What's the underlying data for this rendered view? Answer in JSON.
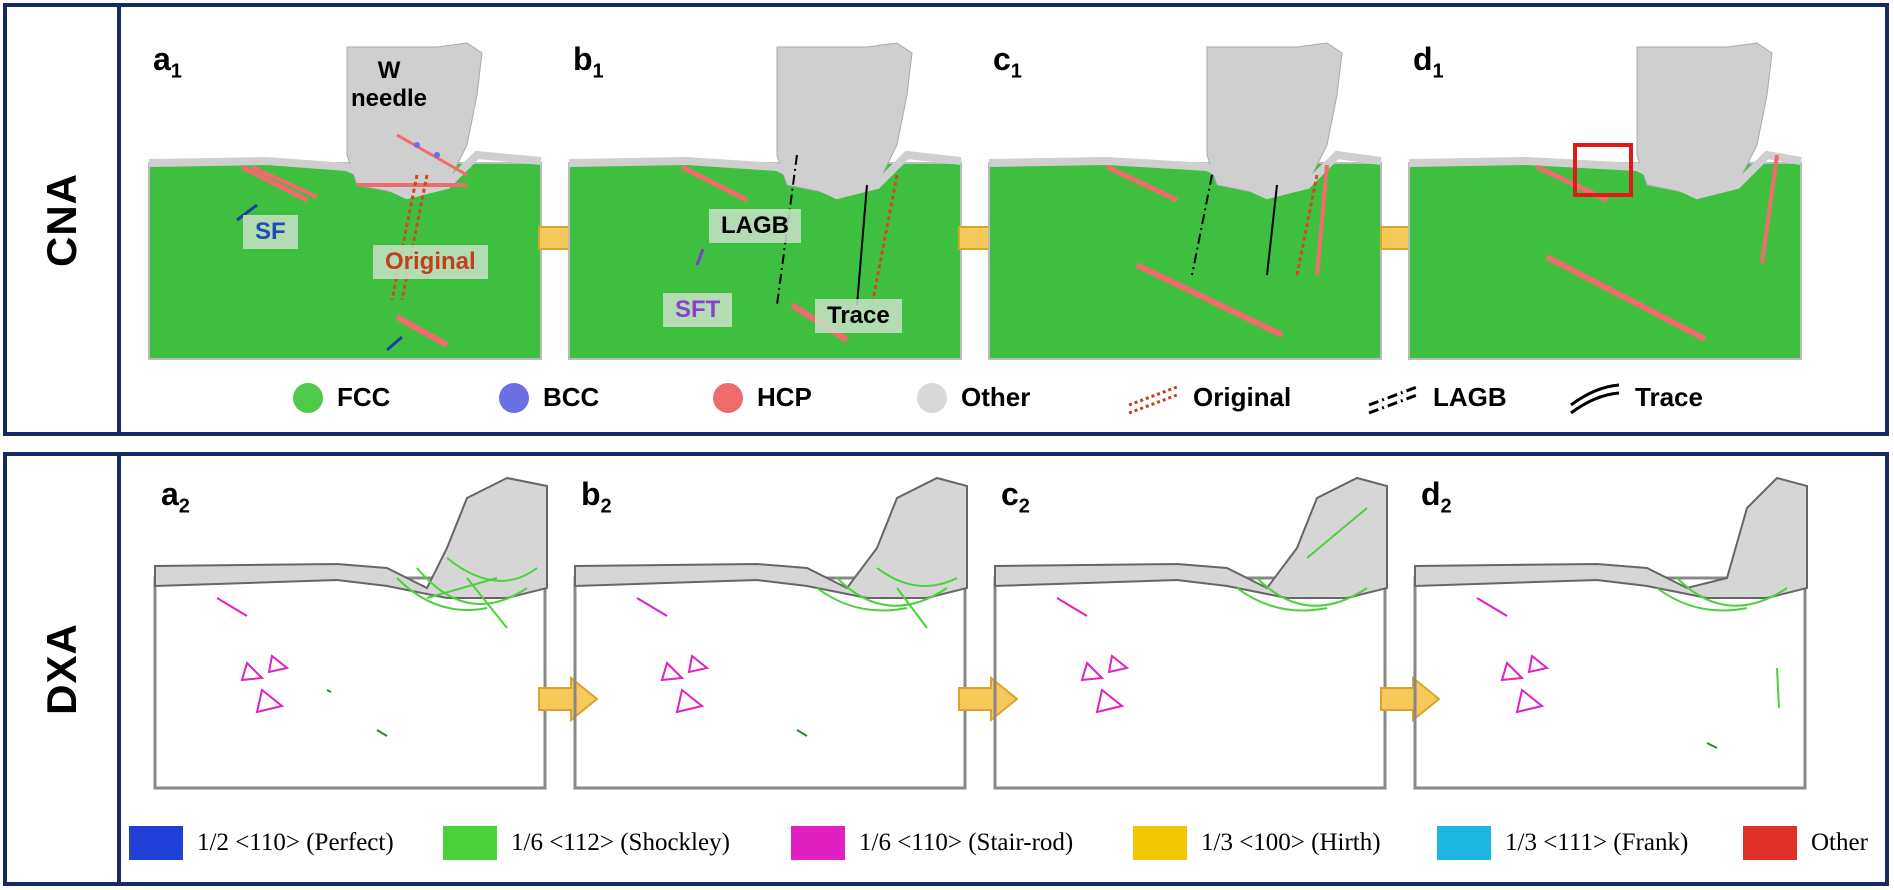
{
  "cna": {
    "side_label": "CNA",
    "panels": [
      {
        "letter": "a",
        "sub": "1"
      },
      {
        "letter": "b",
        "sub": "1"
      },
      {
        "letter": "c",
        "sub": "1"
      },
      {
        "letter": "d",
        "sub": "1"
      }
    ],
    "annotations": {
      "w_line1": "W",
      "w_line2": "needle",
      "sf": "SF",
      "original": "Original",
      "lagb": "LAGB",
      "sft": "SFT",
      "trace": "Trace"
    },
    "legend": [
      {
        "label": "FCC",
        "color": "#4fc94a"
      },
      {
        "label": "BCC",
        "color": "#6b6fe6"
      },
      {
        "label": "HCP",
        "color": "#f06c6c"
      },
      {
        "label": "Other",
        "color": "#d8d8d8"
      },
      {
        "label": "Original",
        "color": "#c0401e"
      },
      {
        "label": "LAGB",
        "color": "#000000"
      },
      {
        "label": "Trace",
        "color": "#000000"
      }
    ]
  },
  "dxa": {
    "side_label": "DXA",
    "panels": [
      {
        "letter": "a",
        "sub": "2"
      },
      {
        "letter": "b",
        "sub": "2"
      },
      {
        "letter": "c",
        "sub": "2"
      },
      {
        "letter": "d",
        "sub": "2"
      }
    ],
    "legend": [
      {
        "label": "1/2 <110> (Perfect)",
        "color": "#1f3fd6"
      },
      {
        "label": "1/6 <112> (Shockley)",
        "color": "#4bd23a"
      },
      {
        "label": "1/6 <110> (Stair-rod)",
        "color": "#e020c0"
      },
      {
        "label": "1/3 <100> (Hirth)",
        "color": "#f2c600"
      },
      {
        "label": "1/3 <111> (Frank)",
        "color": "#1cb6e0"
      },
      {
        "label": "Other",
        "color": "#e0302a"
      }
    ]
  },
  "colors": {
    "frame": "#172a63",
    "arrow": "#f7c95a",
    "arrow_stroke": "#d8a52b",
    "fcc": "#3fbf3f",
    "other_gray": "#cfcfcf"
  }
}
